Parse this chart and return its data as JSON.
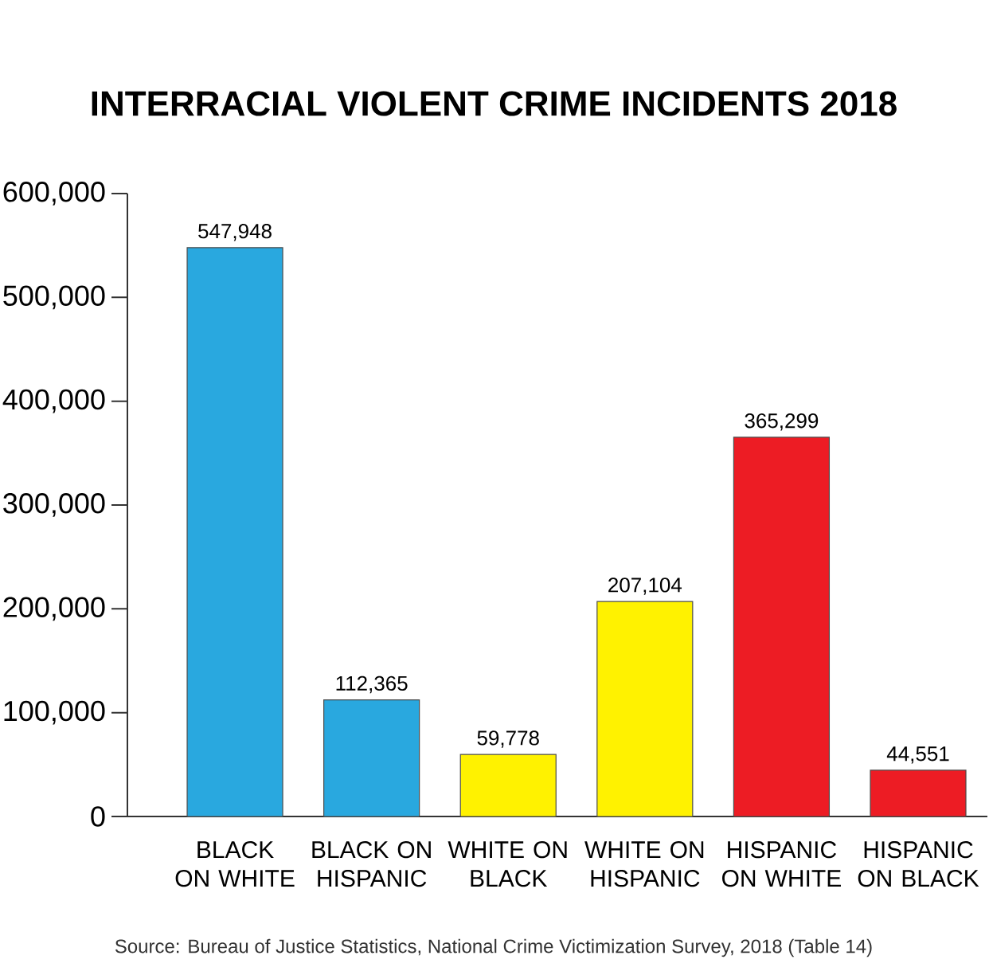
{
  "chart_data": {
    "type": "bar",
    "title": "INTERRACIAL VIOLENT CRIME INCIDENTS 2018",
    "categories": [
      "BLACK ON WHITE",
      "BLACK ON HISPANIC",
      "WHITE ON BLACK",
      "WHITE ON HISPANIC",
      "HISPANIC ON WHITE",
      "HISPANIC ON BLACK"
    ],
    "values": [
      547948,
      112365,
      59778,
      207104,
      365299,
      44551
    ],
    "value_labels": [
      "547,948",
      "112,365",
      "59,778",
      "207,104",
      "365,299",
      "44,551"
    ],
    "colors": [
      "#29a8df",
      "#29a8df",
      "#fff200",
      "#fff200",
      "#ed1c24",
      "#ed1c24"
    ],
    "ylim": [
      0,
      600000
    ],
    "yticks": [
      0,
      {
        "value": 100000,
        "label": "100,000"
      },
      {
        "value": 200000,
        "label": "200,000"
      },
      {
        "value": 300000,
        "label": "300,000"
      },
      {
        "value": 400000,
        "label": "400,000"
      },
      {
        "value": 500000,
        "label": "500,000"
      },
      {
        "value": 600000,
        "label": "600,000"
      }
    ],
    "annotations": [
      "Source: Bureau of Justice Statistics, National Crime Victimization Survey, 2018 (Table 14)"
    ]
  }
}
